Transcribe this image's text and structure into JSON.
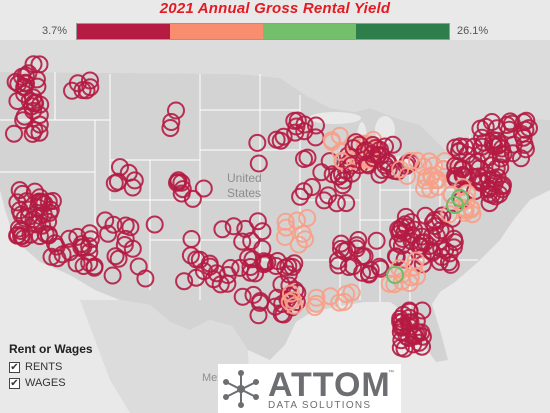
{
  "title": "2021 Annual Gross Rental Yield",
  "legend": {
    "min_label": "3.7%",
    "max_label": "26.1%",
    "colors": [
      "#b51b43",
      "#f98d6f",
      "#74bf6c",
      "#2d7e4a"
    ]
  },
  "map": {
    "country_label": "United States",
    "mexico_label": "Mexico",
    "land_color": "#d7d7d7",
    "water_color": "#e9e9e9",
    "border_color": "#ffffff"
  },
  "marker_colors": {
    "low": "#b51b43",
    "mid": "#f7a088",
    "high": "#6cbf64"
  },
  "filter": {
    "title": "Rent or Wages",
    "options": [
      {
        "label": "RENTS",
        "checked": true
      },
      {
        "label": "WAGES",
        "checked": true
      }
    ]
  },
  "logo": {
    "name": "ATTOM",
    "tagline": "DATA SOLUTIONS",
    "mark": "™"
  }
}
